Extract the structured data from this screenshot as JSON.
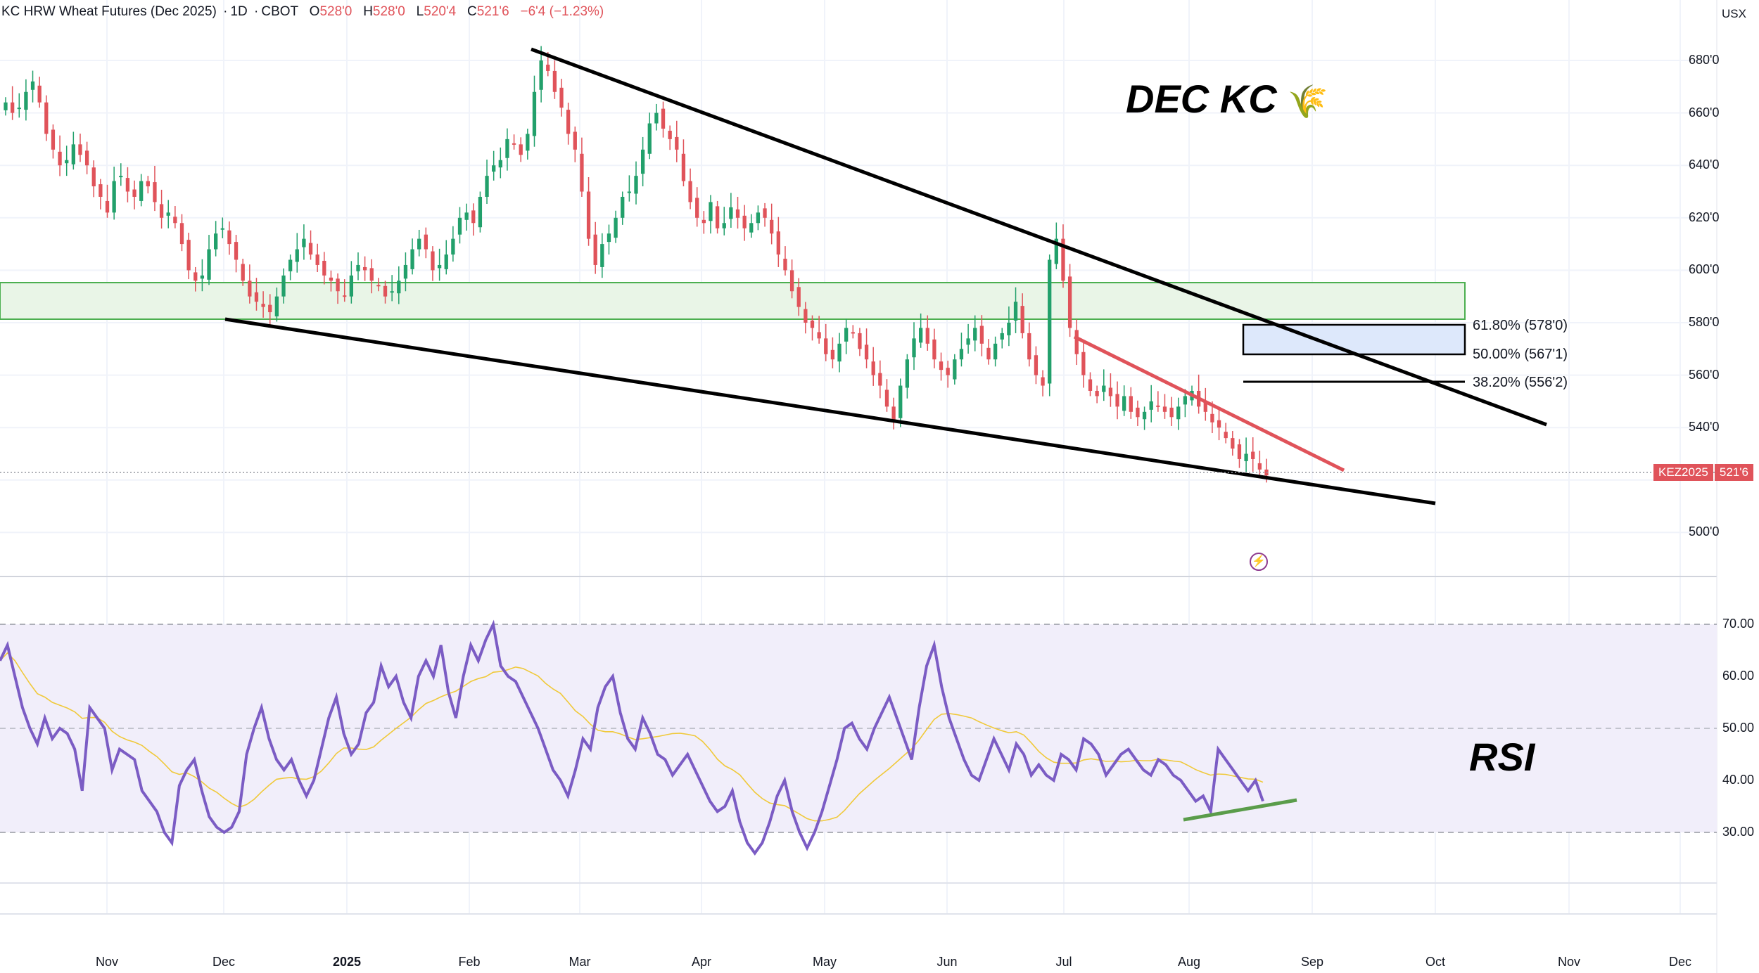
{
  "header": {
    "symbol": "KC HRW Wheat Futures (Dec 2025)",
    "interval": "1D",
    "exchange": "CBOT",
    "o_label": "O",
    "o_value": "528'0",
    "h_label": "H",
    "h_value": "528'0",
    "l_label": "L",
    "l_value": "520'4",
    "c_label": "C",
    "c_value": "521'6",
    "change": "−6'4 (−1.23%)"
  },
  "currency": "USX",
  "price_tag": {
    "symbol": "KEZ2025",
    "value": "521'6"
  },
  "annotations": {
    "title": "DEC KC",
    "title_icon": "wheat-emoji",
    "rsi_label": "RSI",
    "fib_618": "61.80% (578'0)",
    "fib_500": "50.00% (567'1)",
    "fib_382": "38.20% (556'2)"
  },
  "price_axis": [
    "680'0",
    "660'0",
    "640'0",
    "620'0",
    "600'0",
    "580'0",
    "560'0",
    "540'0",
    "500'0"
  ],
  "rsi_axis": [
    "70.00",
    "60.00",
    "50.00",
    "40.00",
    "30.00"
  ],
  "months": [
    "Nov",
    "Dec",
    "2025",
    "Feb",
    "Mar",
    "Apr",
    "May",
    "Jun",
    "Jul",
    "Aug",
    "Sep",
    "Oct",
    "Nov",
    "Dec"
  ],
  "icons": {
    "alert": "lightning-circle-icon"
  },
  "colors": {
    "up": "#22a06b",
    "down": "#e0535a",
    "rsi": "#7b5cc4",
    "rsi_ma": "#f0c93a",
    "zone": "#4caf50",
    "fib_box": "#dde8fb"
  },
  "chart_data": {
    "type": "candlestick+rsi",
    "price_ylim": [
      490,
      690
    ],
    "rsi_ylim": [
      20,
      75
    ],
    "last_close": 521.75,
    "rsi_bands": [
      30,
      50,
      70
    ],
    "support_zone": [
      580,
      594
    ],
    "fib_levels": [
      578.0,
      567.125,
      556.25
    ],
    "closes": [
      664,
      660,
      662,
      668,
      672,
      664,
      652,
      646,
      640,
      642,
      648,
      644,
      640,
      632,
      628,
      622,
      634,
      636,
      630,
      628,
      634,
      632,
      626,
      620,
      622,
      618,
      610,
      600,
      596,
      598,
      608,
      614,
      616,
      610,
      604,
      596,
      590,
      588,
      586,
      584,
      590,
      598,
      604,
      608,
      612,
      606,
      602,
      598,
      596,
      592,
      590,
      598,
      602,
      600,
      596,
      594,
      590,
      592,
      596,
      602,
      608,
      612,
      608,
      600,
      602,
      606,
      612,
      620,
      622,
      618,
      628,
      636,
      640,
      642,
      650,
      648,
      644,
      652,
      668,
      680,
      676,
      668,
      662,
      652,
      646,
      630,
      612,
      602,
      610,
      614,
      620,
      628,
      630,
      636,
      646,
      656,
      660,
      654,
      650,
      646,
      634,
      626,
      620,
      618,
      626,
      616,
      618,
      624,
      620,
      616,
      618,
      622,
      620,
      614,
      606,
      600,
      592,
      586,
      580,
      578,
      574,
      568,
      566,
      572,
      578,
      576,
      570,
      566,
      560,
      556,
      548,
      542,
      556,
      566,
      574,
      578,
      572,
      566,
      562,
      560,
      566,
      570,
      574,
      578,
      572,
      566,
      572,
      576,
      580,
      588,
      576,
      566,
      560,
      556,
      604,
      612,
      596,
      578,
      568,
      560,
      554,
      552,
      556,
      552,
      548,
      552,
      546,
      544,
      546,
      550,
      548,
      546,
      544,
      548,
      552,
      554,
      548,
      546,
      542,
      540,
      536,
      532,
      528,
      530,
      528,
      524,
      521.75
    ],
    "rsi": [
      63,
      66,
      60,
      54,
      50,
      47,
      52,
      48,
      50,
      49,
      46,
      38,
      54,
      52,
      50,
      42,
      46,
      45,
      44,
      38,
      36,
      34,
      30,
      28,
      39,
      42,
      44,
      38,
      33,
      31,
      30,
      31,
      34,
      45,
      50,
      54,
      48,
      44,
      42,
      44,
      40,
      37,
      40,
      46,
      52,
      56,
      49,
      45,
      47,
      53,
      55,
      62,
      58,
      60,
      55,
      52,
      60,
      63,
      60,
      66,
      57,
      52,
      60,
      66,
      63,
      67,
      70,
      62,
      60,
      59,
      56,
      53,
      50,
      46,
      42,
      40,
      37,
      42,
      48,
      46,
      54,
      58,
      60,
      53,
      48,
      46,
      52,
      49,
      45,
      44,
      41,
      43,
      45,
      42,
      39,
      36,
      34,
      35,
      38,
      32,
      28,
      26,
      28,
      32,
      37,
      40,
      34,
      30,
      27,
      30,
      34,
      39,
      44,
      50,
      51,
      48,
      46,
      50,
      53,
      56,
      52,
      48,
      44,
      54,
      62,
      66,
      58,
      52,
      48,
      44,
      41,
      40,
      44,
      48,
      45,
      42,
      47,
      45,
      41,
      43,
      41,
      40,
      45,
      44,
      42,
      48,
      47,
      45,
      41,
      43,
      45,
      46,
      44,
      42,
      41,
      44,
      43,
      41,
      40,
      38,
      36,
      37,
      34,
      46,
      44,
      42,
      40,
      38,
      40,
      36
    ]
  }
}
